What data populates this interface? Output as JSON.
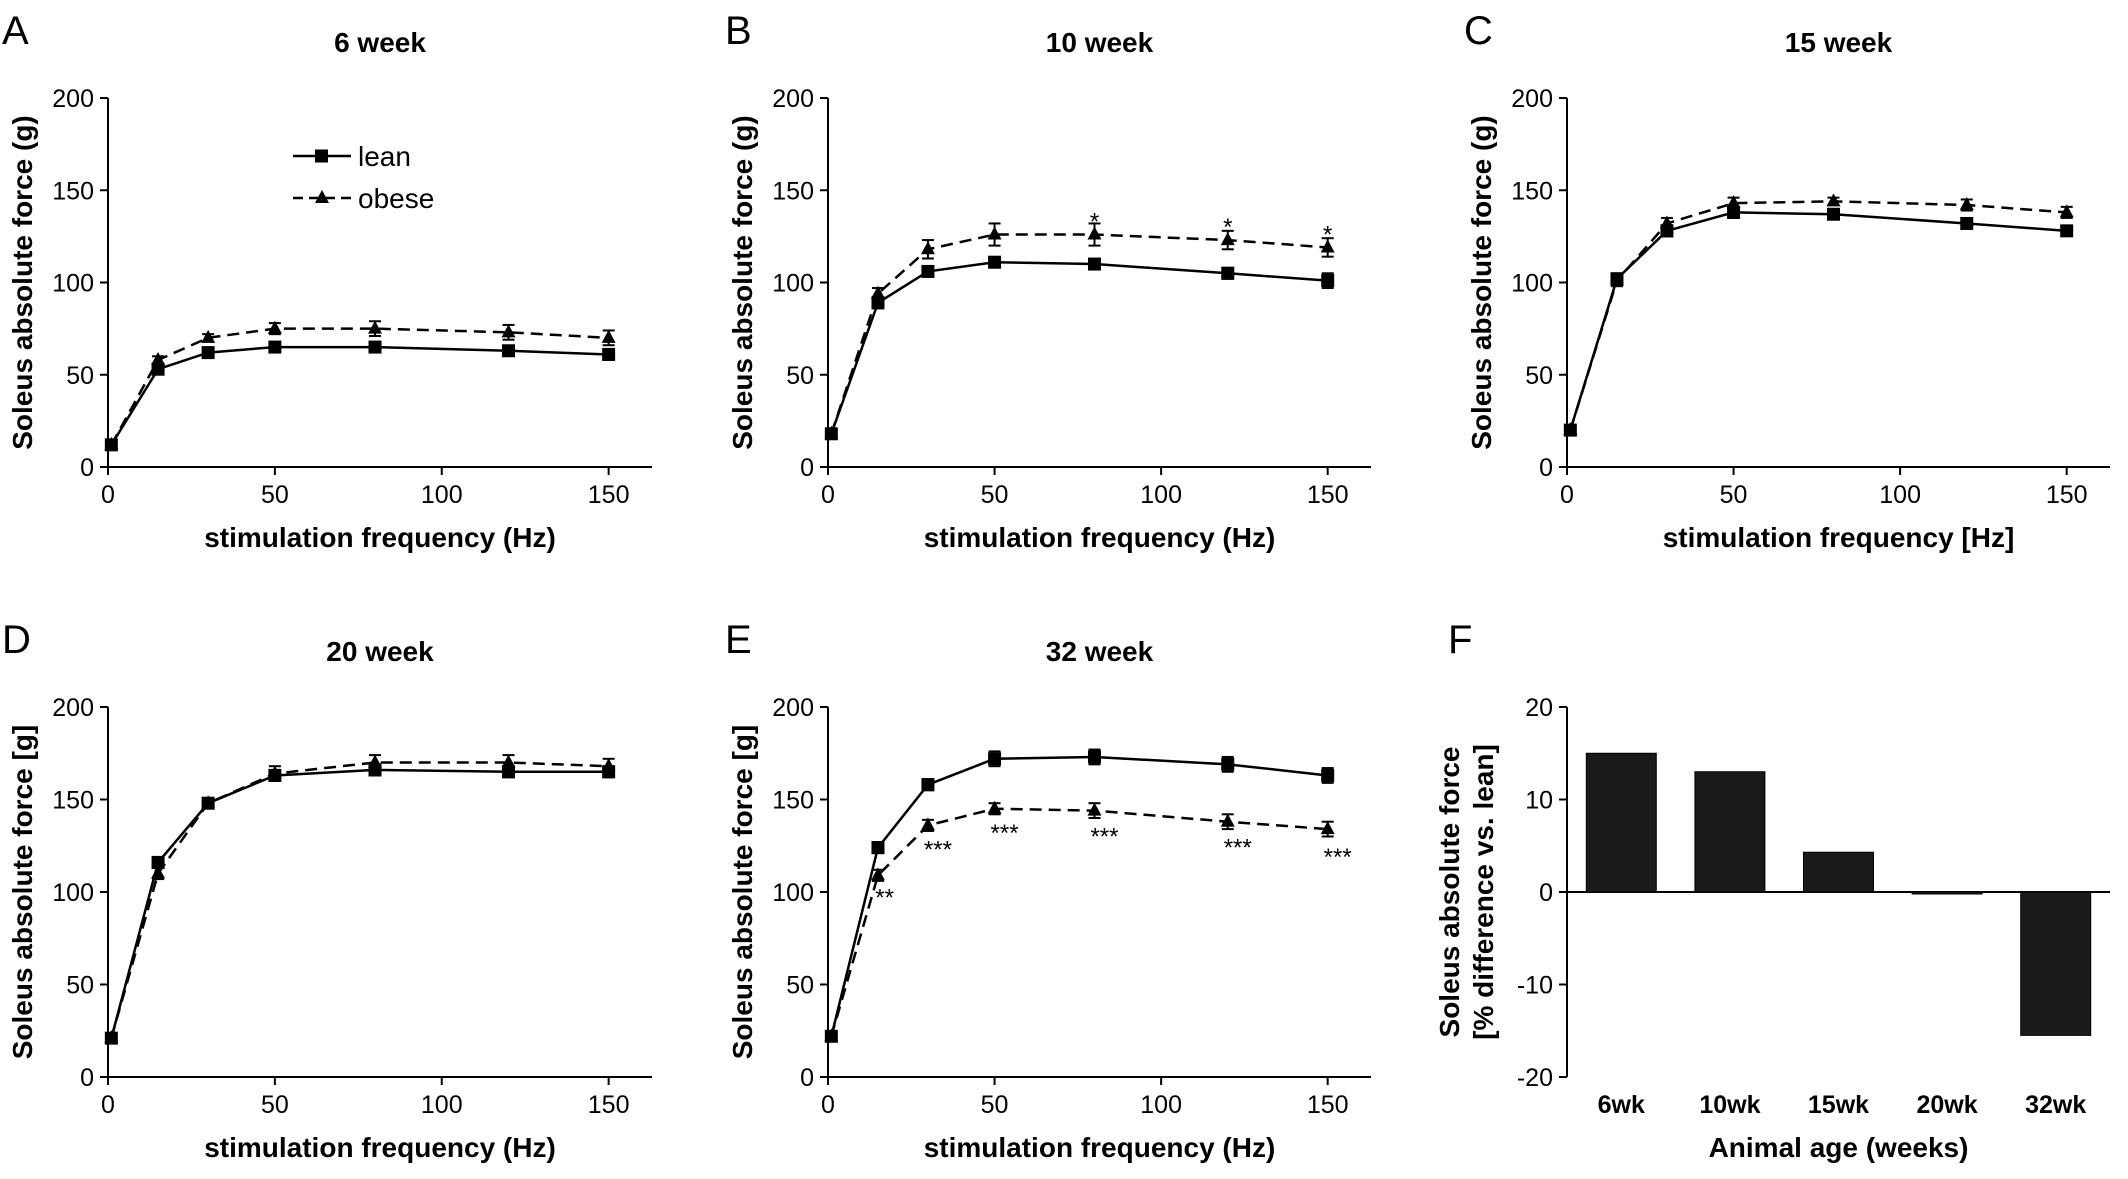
{
  "chart_data": [
    {
      "type": "line",
      "letter": "A",
      "title": "6 week",
      "xlabel": "stimulation frequency (Hz)",
      "ylabel": "Soleus absolute force (g)",
      "xlim": [
        0,
        160
      ],
      "ylim": [
        0,
        200
      ],
      "xticks": [
        0,
        50,
        100,
        150
      ],
      "yticks": [
        0,
        50,
        100,
        150,
        200
      ],
      "x": [
        1,
        15,
        30,
        50,
        80,
        120,
        150
      ],
      "series": [
        {
          "name": "lean",
          "style": "solid",
          "marker": "square",
          "values": [
            12,
            53,
            62,
            65,
            65,
            63,
            61
          ],
          "errors": [
            1,
            2,
            2,
            2,
            2,
            2,
            3
          ]
        },
        {
          "name": "obese",
          "style": "dashed",
          "marker": "triangle",
          "values": [
            12,
            58,
            70,
            75,
            75,
            73,
            70
          ],
          "errors": [
            1,
            2,
            2,
            3,
            4,
            4,
            4
          ]
        }
      ],
      "legend": {
        "show": true,
        "entries": [
          "lean",
          "obese"
        ],
        "placement": "top-left"
      },
      "annotations": []
    },
    {
      "type": "line",
      "letter": "B",
      "title": "10 week",
      "xlabel": "stimulation frequency (Hz)",
      "ylabel": "Soleus absolute force (g)",
      "xlim": [
        0,
        160
      ],
      "ylim": [
        0,
        200
      ],
      "xticks": [
        0,
        50,
        100,
        150
      ],
      "yticks": [
        0,
        50,
        100,
        150,
        200
      ],
      "x": [
        1,
        15,
        30,
        50,
        80,
        120,
        150
      ],
      "series": [
        {
          "name": "lean",
          "style": "solid",
          "marker": "square",
          "values": [
            18,
            89,
            106,
            111,
            110,
            105,
            101
          ],
          "errors": [
            1,
            3,
            2,
            2,
            2,
            3,
            4
          ]
        },
        {
          "name": "obese",
          "style": "dashed",
          "marker": "triangle",
          "values": [
            18,
            94,
            118,
            126,
            126,
            123,
            119
          ],
          "errors": [
            1,
            3,
            5,
            6,
            6,
            5,
            5
          ]
        }
      ],
      "legend": {
        "show": false
      },
      "annotations": [
        {
          "x": 80,
          "y": 133,
          "text": "*"
        },
        {
          "x": 120,
          "y": 130,
          "text": "*"
        },
        {
          "x": 150,
          "y": 126,
          "text": "*"
        }
      ]
    },
    {
      "type": "line",
      "letter": "C",
      "title": "15 week",
      "xlabel": "stimulation frequency [Hz]",
      "ylabel": "Soleus absolute force (g)",
      "xlim": [
        0,
        160
      ],
      "ylim": [
        0,
        200
      ],
      "xticks": [
        0,
        50,
        100,
        150
      ],
      "yticks": [
        0,
        50,
        100,
        150,
        200
      ],
      "x": [
        1,
        15,
        30,
        50,
        80,
        120,
        150
      ],
      "series": [
        {
          "name": "lean",
          "style": "solid",
          "marker": "square",
          "values": [
            20,
            102,
            128,
            138,
            137,
            132,
            128
          ],
          "errors": [
            1,
            3,
            3,
            3,
            2,
            2,
            2
          ]
        },
        {
          "name": "obese",
          "style": "dashed",
          "marker": "triangle",
          "values": [
            20,
            101,
            132,
            143,
            144,
            142,
            138
          ],
          "errors": [
            1,
            3,
            3,
            3,
            2,
            3,
            3
          ]
        }
      ],
      "legend": {
        "show": false
      },
      "annotations": []
    },
    {
      "type": "line",
      "letter": "D",
      "title": "20 week",
      "xlabel": "stimulation frequency (Hz)",
      "ylabel": "Soleus absolute force [g]",
      "xlim": [
        0,
        160
      ],
      "ylim": [
        0,
        200
      ],
      "xticks": [
        0,
        50,
        100,
        150
      ],
      "yticks": [
        0,
        50,
        100,
        150,
        200
      ],
      "x": [
        1,
        15,
        30,
        50,
        80,
        120,
        150
      ],
      "series": [
        {
          "name": "lean",
          "style": "solid",
          "marker": "square",
          "values": [
            21,
            116,
            148,
            163,
            166,
            165,
            165
          ],
          "errors": [
            2,
            2,
            2,
            3,
            3,
            3,
            3
          ]
        },
        {
          "name": "obese",
          "style": "dashed",
          "marker": "triangle",
          "values": [
            21,
            110,
            148,
            164,
            170,
            170,
            168
          ],
          "errors": [
            2,
            3,
            2,
            4,
            4,
            4,
            4
          ]
        }
      ],
      "legend": {
        "show": false
      },
      "annotations": []
    },
    {
      "type": "line",
      "letter": "E",
      "title": "32 week",
      "xlabel": "stimulation frequency (Hz)",
      "ylabel": "Soleus absolute force [g]",
      "xlim": [
        0,
        160
      ],
      "ylim": [
        0,
        200
      ],
      "xticks": [
        0,
        50,
        100,
        150
      ],
      "yticks": [
        0,
        50,
        100,
        150,
        200
      ],
      "x": [
        1,
        15,
        30,
        50,
        80,
        120,
        150
      ],
      "series": [
        {
          "name": "lean",
          "style": "solid",
          "marker": "square",
          "values": [
            22,
            124,
            158,
            172,
            173,
            169,
            163
          ],
          "errors": [
            1,
            3,
            3,
            4,
            4,
            4,
            4
          ]
        },
        {
          "name": "obese",
          "style": "dashed",
          "marker": "triangle",
          "values": [
            22,
            109,
            136,
            145,
            144,
            138,
            134
          ],
          "errors": [
            1,
            3,
            3,
            3,
            4,
            4,
            4
          ]
        }
      ],
      "legend": {
        "show": false
      },
      "annotations": [
        {
          "x": 17,
          "y": 97,
          "text": "**"
        },
        {
          "x": 33,
          "y": 123,
          "text": "***"
        },
        {
          "x": 53,
          "y": 132,
          "text": "***"
        },
        {
          "x": 83,
          "y": 130,
          "text": "***"
        },
        {
          "x": 123,
          "y": 124,
          "text": "***"
        },
        {
          "x": 153,
          "y": 119,
          "text": "***"
        }
      ]
    },
    {
      "type": "bar",
      "letter": "F",
      "xlabel": "Animal age (weeks)",
      "ylabel": "Soleus absolute force",
      "ylabel2": "[% difference vs. lean]",
      "ylim": [
        -20,
        20
      ],
      "yticks": [
        -20,
        -10,
        0,
        10,
        20
      ],
      "categories": [
        "6wk",
        "10wk",
        "15wk",
        "20wk",
        "32wk"
      ],
      "values": [
        15,
        13,
        4.3,
        -0.2,
        -15.5
      ],
      "bar_color": "#1a1a1a"
    }
  ]
}
